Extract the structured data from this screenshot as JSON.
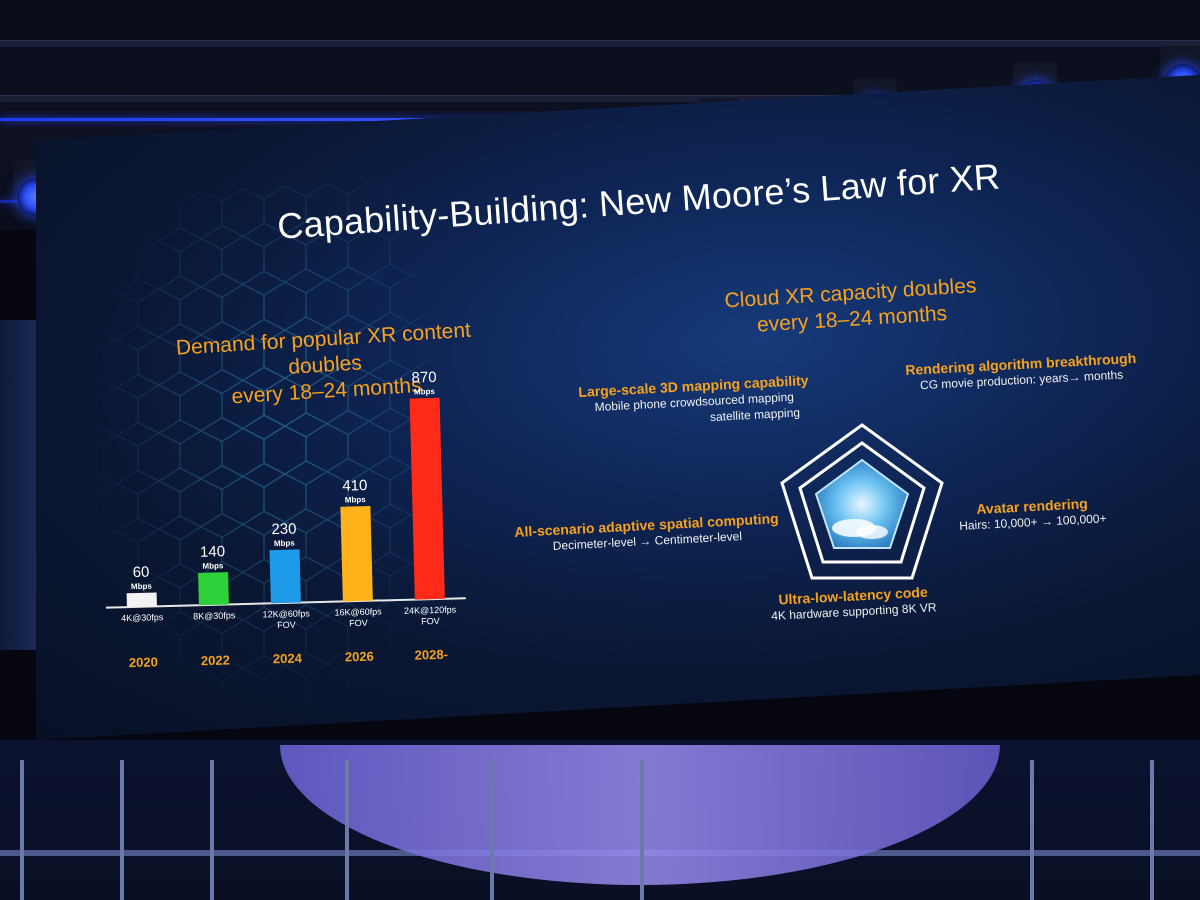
{
  "slide": {
    "title": "Capability-Building: New Moore’s Law for XR",
    "left_heading_line1": "Demand for popular XR content doubles",
    "left_heading_line2": "every 18–24 months",
    "right_heading_line1": "Cloud XR capacity doubles",
    "right_heading_line2": "every 18–24 months"
  },
  "chart_data": {
    "type": "bar",
    "categories": [
      "2020",
      "2022",
      "2024",
      "2026",
      "2028-"
    ],
    "resolutions": [
      "4K@30fps",
      "8K@30fps",
      "12K@60fps FOV",
      "16K@60fps FOV",
      "24K@120fps FOV"
    ],
    "values": [
      60,
      140,
      230,
      410,
      870
    ],
    "unit": "Mbps",
    "colors": [
      "#f2f2f2",
      "#2fd13a",
      "#1e9be8",
      "#ffb21a",
      "#ff2a17"
    ],
    "ylim": [
      0,
      900
    ],
    "axis_color": "#e8e8e8",
    "label_color": "#f6a21e"
  },
  "capabilities": [
    {
      "heading": "Large-scale 3D mapping capability",
      "line1": "Mobile phone crowdsourced mapping",
      "line2": "satellite mapping"
    },
    {
      "heading": "Rendering algorithm breakthrough",
      "line1": "CG movie production: years→ months",
      "line2": ""
    },
    {
      "heading": "Avatar rendering",
      "line1": "Hairs: 10,000+ → 100,000+",
      "line2": ""
    },
    {
      "heading": "Ultra-low-latency code",
      "line1": "4K hardware supporting 8K VR",
      "line2": ""
    },
    {
      "heading": "All-scenario adaptive spatial computing",
      "line1": "Decimeter-level → Centimeter-level",
      "line2": ""
    }
  ],
  "colors": {
    "accent_orange": "#f6a21e",
    "screen_bg": "#0e2453",
    "stage_blue": "#2d4fff"
  },
  "icons": [
    "stage-spotlight-icon",
    "pentagon-radar-icon",
    "cloud-sky-icon",
    "hexagon-network-icon"
  ]
}
